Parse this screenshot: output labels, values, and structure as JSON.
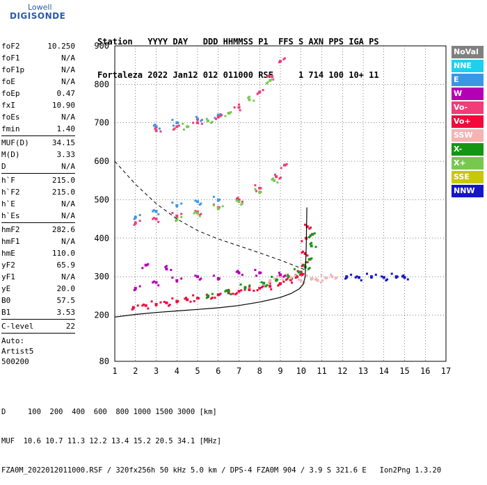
{
  "logo": {
    "line1": "Lowell",
    "line2": "DIGISONDE"
  },
  "header": {
    "line1": "Station   YYYY DAY   DDD HHMMSS P1  FFS S AXN PPS IGA PS",
    "line2": "Fortaleza 2022 Jan12 012 011000 RSF     1 714 100 10+ 11"
  },
  "params": {
    "group1": [
      {
        "k": "foF2",
        "v": "10.250"
      },
      {
        "k": "foF1",
        "v": "N/A"
      },
      {
        "k": "foF1p",
        "v": "N/A"
      },
      {
        "k": "foE",
        "v": "N/A"
      },
      {
        "k": "foEp",
        "v": "0.47"
      },
      {
        "k": "fxI",
        "v": "10.90"
      },
      {
        "k": "foEs",
        "v": "N/A"
      },
      {
        "k": "fmin",
        "v": "1.40"
      }
    ],
    "group2": [
      {
        "k": "MUF(D)",
        "v": "34.15"
      },
      {
        "k": "M(D)",
        "v": "3.33"
      },
      {
        "k": "D",
        "v": "N/A"
      }
    ],
    "group3": [
      {
        "k": "h`F",
        "v": "215.0"
      },
      {
        "k": "h`F2",
        "v": "215.0"
      },
      {
        "k": "h`E",
        "v": "N/A"
      },
      {
        "k": "h`Es",
        "v": "N/A"
      }
    ],
    "group4": [
      {
        "k": "hmF2",
        "v": "282.6"
      },
      {
        "k": "hmF1",
        "v": "N/A"
      },
      {
        "k": "hmE",
        "v": "110.0"
      },
      {
        "k": "yF2",
        "v": "65.9"
      },
      {
        "k": "yF1",
        "v": "N/A"
      },
      {
        "k": "yE",
        "v": "20.0"
      },
      {
        "k": "B0",
        "v": "57.5"
      },
      {
        "k": "B1",
        "v": "3.53"
      }
    ],
    "group5": [
      {
        "k": "C-level",
        "v": "22"
      }
    ]
  },
  "auto": {
    "line1": "Auto:",
    "line2": "Artist5",
    "line3": "500200"
  },
  "legend": [
    {
      "label": "NoVal",
      "color": "#808080"
    },
    {
      "label": "NNE",
      "color": "#1ed0f0"
    },
    {
      "label": "E",
      "color": "#3c96e6"
    },
    {
      "label": "W",
      "color": "#b400b4"
    },
    {
      "label": "Vo-",
      "color": "#f03c78"
    },
    {
      "label": "Vo+",
      "color": "#f00a3c"
    },
    {
      "label": "SSW",
      "color": "#f4b4b4"
    },
    {
      "label": "X-",
      "color": "#149614"
    },
    {
      "label": "X+",
      "color": "#78c850"
    },
    {
      "label": "SSE",
      "color": "#c8c800"
    },
    {
      "label": "NNW",
      "color": "#1414c8"
    }
  ],
  "footer": {
    "line1": "D     100  200  400  600  800 1000 1500 3000 [km]",
    "line2": "MUF  10.6 10.7 11.3 12.2 13.4 15.2 20.5 34.1 [MHz]",
    "line3": "FZA0M_2022012011000.RSF / 320fx256h 50 kHz 5.0 km / DPS-4 FZA0M 904 / 3.9 S 321.6 E   Ion2Png 1.3.20"
  },
  "chart_data": {
    "type": "scatter",
    "xlim": [
      1,
      17
    ],
    "ylim": [
      80,
      900
    ],
    "x_ticks": [
      1,
      2,
      3,
      4,
      5,
      6,
      7,
      8,
      9,
      10,
      11,
      12,
      13,
      14,
      15,
      16,
      17
    ],
    "y_ticks": [
      80,
      200,
      300,
      400,
      500,
      600,
      700,
      800,
      900
    ],
    "grid": true,
    "legend_placement": "right",
    "series": [
      {
        "name": "Vo+",
        "color": "#f00a3c",
        "points": [
          [
            1.9,
            220
          ],
          [
            2.5,
            225
          ],
          [
            3,
            228
          ],
          [
            3.5,
            232
          ],
          [
            4,
            236
          ],
          [
            4.5,
            240
          ],
          [
            5,
            244
          ],
          [
            5.5,
            248
          ],
          [
            6,
            253
          ],
          [
            6.5,
            258
          ],
          [
            7,
            262
          ],
          [
            7.5,
            266
          ],
          [
            8,
            270
          ],
          [
            8.5,
            275
          ],
          [
            9,
            282
          ],
          [
            9.5,
            292
          ],
          [
            9.8,
            300
          ],
          [
            10,
            312
          ],
          [
            10.1,
            330
          ],
          [
            10.2,
            360
          ],
          [
            10.25,
            400
          ],
          [
            10.3,
            430
          ]
        ]
      },
      {
        "name": "X-",
        "color": "#149614",
        "points": [
          [
            5.5,
            250
          ],
          [
            6.5,
            262
          ],
          [
            7.3,
            272
          ],
          [
            8.2,
            283
          ],
          [
            8.8,
            292
          ],
          [
            9.4,
            300
          ],
          [
            9.9,
            312
          ],
          [
            10.2,
            325
          ],
          [
            10.4,
            345
          ],
          [
            10.5,
            380
          ],
          [
            10.55,
            410
          ]
        ]
      },
      {
        "name": "SSW",
        "color": "#f4b4b4",
        "points": [
          [
            8.5,
            290
          ],
          [
            9,
            300
          ],
          [
            9.5,
            298
          ],
          [
            10,
            290
          ],
          [
            10.5,
            295
          ],
          [
            10.8,
            290
          ],
          [
            11.2,
            297
          ],
          [
            11.5,
            300
          ]
        ]
      },
      {
        "name": "NNW",
        "color": "#1414c8",
        "points": [
          [
            12.2,
            300
          ],
          [
            12.8,
            298
          ],
          [
            13.4,
            300
          ],
          [
            14,
            298
          ],
          [
            14.6,
            300
          ],
          [
            15,
            298
          ]
        ]
      },
      {
        "name": "W",
        "color": "#b400b4",
        "points": [
          [
            2,
            270
          ],
          [
            3,
            285
          ],
          [
            4,
            290
          ],
          [
            5,
            300
          ],
          [
            6,
            295
          ],
          [
            7,
            310
          ],
          [
            8,
            310
          ],
          [
            9,
            305
          ],
          [
            2.5,
            330
          ],
          [
            3.5,
            320
          ]
        ]
      },
      {
        "name": "E",
        "color": "#3c96e6",
        "points": [
          [
            2,
            455
          ],
          [
            3,
            470
          ],
          [
            4,
            485
          ],
          [
            5,
            495
          ],
          [
            6,
            500
          ],
          [
            3,
            690
          ],
          [
            4,
            700
          ],
          [
            5,
            710
          ],
          [
            6,
            720
          ]
        ]
      },
      {
        "name": "Vo-",
        "color": "#f03c78",
        "points": [
          [
            2,
            440
          ],
          [
            3,
            450
          ],
          [
            4,
            458
          ],
          [
            5,
            468
          ],
          [
            6,
            480
          ],
          [
            7,
            500
          ],
          [
            8,
            530
          ],
          [
            8.8,
            560
          ],
          [
            9.2,
            590
          ],
          [
            3,
            680
          ],
          [
            4,
            690
          ],
          [
            5,
            700
          ],
          [
            6,
            715
          ],
          [
            7,
            740
          ],
          [
            8,
            780
          ],
          [
            8.6,
            820
          ],
          [
            9,
            860
          ]
        ]
      },
      {
        "name": "X+",
        "color": "#78c850",
        "points": [
          [
            4,
            450
          ],
          [
            5,
            465
          ],
          [
            6,
            478
          ],
          [
            7,
            495
          ],
          [
            8,
            520
          ],
          [
            8.7,
            550
          ],
          [
            4.5,
            690
          ],
          [
            5.5,
            705
          ],
          [
            6.5,
            725
          ],
          [
            7.5,
            760
          ],
          [
            8.5,
            810
          ]
        ]
      }
    ],
    "trace_curve": [
      [
        1,
        195
      ],
      [
        2,
        202
      ],
      [
        3,
        207
      ],
      [
        4,
        211
      ],
      [
        5,
        215
      ],
      [
        6,
        219
      ],
      [
        7,
        225
      ],
      [
        8,
        234
      ],
      [
        9,
        246
      ],
      [
        9.5,
        256
      ],
      [
        9.9,
        268
      ],
      [
        10.1,
        280
      ],
      [
        10.2,
        300
      ],
      [
        10.25,
        380
      ],
      [
        10.28,
        480
      ]
    ],
    "dashed_curve": [
      [
        1,
        600
      ],
      [
        2,
        540
      ],
      [
        3,
        490
      ],
      [
        4,
        450
      ],
      [
        5,
        420
      ],
      [
        6,
        398
      ],
      [
        7,
        380
      ],
      [
        8,
        362
      ],
      [
        9,
        343
      ],
      [
        10,
        322
      ],
      [
        10.3,
        315
      ]
    ]
  }
}
